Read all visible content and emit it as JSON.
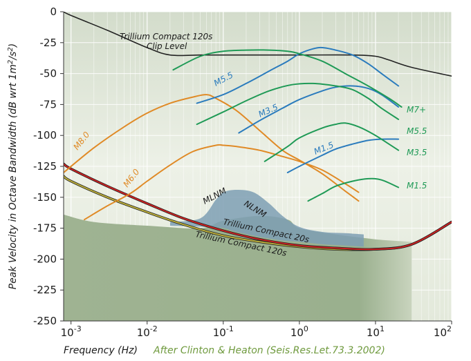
{
  "chart_data": {
    "type": "line",
    "title": "",
    "xlabel": "Frequency (Hz)",
    "ylabel": "Peak Velocity in Octave Bandwidth (dB wrt 1m²/s²)",
    "ylabel_parts": {
      "main": "Peak Velocity in Octave Bandwidth (dB wrt 1m",
      "sup1": "2",
      "mid": "/s",
      "sup2": "2",
      "end": ")"
    },
    "credit": "After Clinton & Heaton (Seis.Res.Let.73.3.2002)",
    "x_scale": "log",
    "xlim": [
      0.0008,
      100
    ],
    "ylim": [
      -250,
      0
    ],
    "x_ticks": [
      {
        "value": 0.001,
        "base": "10",
        "exp": "-3"
      },
      {
        "value": 0.01,
        "base": "10",
        "exp": "-2"
      },
      {
        "value": 0.1,
        "base": "10",
        "exp": "-1"
      },
      {
        "value": 1,
        "base": "10",
        "exp": "0"
      },
      {
        "value": 10,
        "base": "10",
        "exp": "1"
      },
      {
        "value": 100,
        "base": "10",
        "exp": "2"
      }
    ],
    "y_ticks": [
      0,
      -25,
      -50,
      -75,
      -100,
      -125,
      -150,
      -175,
      -200,
      -225,
      -250
    ],
    "y_tick_labels": [
      "0",
      "-25",
      "-50",
      "-75",
      "-100",
      "-125",
      "-150",
      "-175",
      "-200",
      "-225",
      "-250"
    ],
    "grid": true,
    "colors": {
      "background": "#e6ecdd",
      "grid": "#ffffff",
      "noise_fill": "#a9bb9c",
      "noise_band": "#7e9fb4",
      "clip": "#222222",
      "instrument_20s": "#cc2222",
      "instrument_120s": "#bcae3a",
      "teleseismic": "#e08a26",
      "regional_green": "#1f9a56",
      "regional_blue": "#2a7bbd"
    },
    "labels": {
      "clip_line1": "Trillium Compact 120s",
      "clip_line2": "Clip Level",
      "mlnm": "MLNM",
      "nlnm": "NLNM",
      "tc20": "Trillium Compact 20s",
      "tc120": "Trillium Compact 120s",
      "m80": "M8.0",
      "m60": "M6.0",
      "m55_blue": "M5.5",
      "m35_blue": "M3.5",
      "m15_blue": "M1.5",
      "m7p": "M7+",
      "m55_green": "M5.5",
      "m35_green": "M3.5",
      "m15_green": "M1.5"
    },
    "series": [
      {
        "key": "clip",
        "name": "Trillium Compact 120s Clip Level",
        "color": "#222222",
        "x": [
          0.0008,
          0.001,
          0.003,
          0.01,
          0.02,
          0.05,
          0.1,
          1,
          5,
          10,
          15,
          30,
          100
        ],
        "y": [
          0,
          -3,
          -15,
          -29,
          -35,
          -35,
          -35,
          -35,
          -35,
          -36,
          -39,
          -45,
          -52
        ]
      },
      {
        "key": "tc120",
        "name": "Trillium Compact 120s",
        "color": "#bcae3a",
        "x": [
          0.0008,
          0.001,
          0.003,
          0.01,
          0.03,
          0.1,
          0.3,
          1,
          3,
          10,
          30,
          100
        ],
        "y": [
          -133,
          -137,
          -150,
          -162,
          -172,
          -181,
          -186,
          -190,
          -192,
          -192,
          -188,
          -170
        ]
      },
      {
        "key": "tc20",
        "name": "Trillium Compact 20s",
        "color": "#cc2222",
        "x": [
          0.0008,
          0.001,
          0.003,
          0.01,
          0.03,
          0.1,
          0.3,
          1,
          3,
          10,
          30,
          100
        ],
        "y": [
          -123,
          -127,
          -141,
          -155,
          -167,
          -177,
          -184,
          -189,
          -191,
          -192,
          -188,
          -170
        ]
      },
      {
        "key": "m80",
        "name": "M8.0",
        "color": "#e08a26",
        "x": [
          0.0008,
          0.002,
          0.005,
          0.01,
          0.02,
          0.04,
          0.06,
          0.08,
          0.15,
          0.3,
          0.6,
          1,
          2,
          4,
          6
        ],
        "y": [
          -130,
          -110,
          -93,
          -82,
          -74,
          -69,
          -67,
          -70,
          -80,
          -96,
          -112,
          -120,
          -131,
          -145,
          -153
        ]
      },
      {
        "key": "m60",
        "name": "M6.0",
        "color": "#e08a26",
        "x": [
          0.0015,
          0.003,
          0.006,
          0.01,
          0.02,
          0.04,
          0.08,
          0.1,
          0.15,
          0.3,
          0.6,
          1,
          2,
          4,
          6
        ],
        "y": [
          -168,
          -157,
          -147,
          -137,
          -124,
          -113,
          -108,
          -108,
          -109,
          -112,
          -117,
          -121,
          -128,
          -139,
          -146
        ]
      },
      {
        "key": "m55_blue",
        "name": "M5.5",
        "color": "#2a7bbd",
        "x": [
          0.045,
          0.1,
          0.2,
          0.4,
          0.7,
          1,
          1.5,
          2,
          3,
          5,
          8,
          12,
          20
        ],
        "y": [
          -74,
          -67,
          -58,
          -48,
          -40,
          -34,
          -30,
          -29,
          -31,
          -35,
          -42,
          -50,
          -60
        ]
      },
      {
        "key": "m35_blue",
        "name": "M3.5",
        "color": "#2a7bbd",
        "x": [
          0.16,
          0.3,
          0.6,
          1,
          2,
          3,
          5,
          8,
          12,
          20
        ],
        "y": [
          -98,
          -88,
          -78,
          -71,
          -64,
          -61,
          -60,
          -62,
          -67,
          -77
        ]
      },
      {
        "key": "m15_blue",
        "name": "M1.5",
        "color": "#2a7bbd",
        "x": [
          0.7,
          1,
          2,
          3,
          5,
          8,
          12,
          20
        ],
        "y": [
          -130,
          -125,
          -116,
          -111,
          -107,
          -104,
          -103,
          -103
        ]
      },
      {
        "key": "m7p",
        "name": "M7+",
        "color": "#1f9a56",
        "x": [
          0.022,
          0.05,
          0.1,
          0.2,
          0.4,
          0.7,
          1,
          2,
          4,
          8,
          15,
          22
        ],
        "y": [
          -47,
          -36,
          -32,
          -31,
          -31,
          -32,
          -34,
          -40,
          -50,
          -60,
          -70,
          -77
        ]
      },
      {
        "key": "m55_green",
        "name": "M5.5",
        "color": "#1f9a56",
        "x": [
          0.045,
          0.1,
          0.2,
          0.4,
          0.8,
          1.5,
          3,
          5,
          8,
          12,
          20
        ],
        "y": [
          -91,
          -81,
          -72,
          -64,
          -59,
          -58,
          -60,
          -63,
          -70,
          -78,
          -87
        ]
      },
      {
        "key": "m35_green",
        "name": "M3.5",
        "color": "#1f9a56",
        "x": [
          0.35,
          0.7,
          1,
          2,
          3,
          4,
          6,
          10,
          15,
          20
        ],
        "y": [
          -121,
          -109,
          -102,
          -94,
          -91,
          -90,
          -93,
          -100,
          -107,
          -112
        ]
      },
      {
        "key": "m15_green",
        "name": "M1.5",
        "color": "#1f9a56",
        "x": [
          1.3,
          2,
          3,
          5,
          8,
          12,
          20
        ],
        "y": [
          -153,
          -147,
          -141,
          -137,
          -135,
          -136,
          -142
        ]
      }
    ],
    "noise_area": {
      "name": "NLNM",
      "x": [
        0.0008,
        0.002,
        0.01,
        0.05,
        0.1,
        0.3,
        0.7,
        1,
        3,
        10,
        30
      ],
      "y": [
        -164,
        -170,
        -173,
        -175,
        -169,
        -165,
        -168,
        -175,
        -180,
        -184,
        -186
      ]
    },
    "noise_band": {
      "name": "MLNM",
      "upper": {
        "x": [
          0.02,
          0.05,
          0.08,
          0.1,
          0.15,
          0.25,
          0.4,
          0.6,
          1,
          2,
          4,
          7
        ],
        "y": [
          -170,
          -167,
          -152,
          -146,
          -144,
          -146,
          -155,
          -165,
          -174,
          -178,
          -179,
          -180
        ]
      },
      "lower": {
        "x": [
          7,
          4,
          2,
          1,
          0.6,
          0.3,
          0.15,
          0.1,
          0.06,
          0.02
        ],
        "y": [
          -190,
          -189,
          -188,
          -186,
          -185,
          -182,
          -178,
          -175,
          -174,
          -173
        ]
      }
    }
  }
}
